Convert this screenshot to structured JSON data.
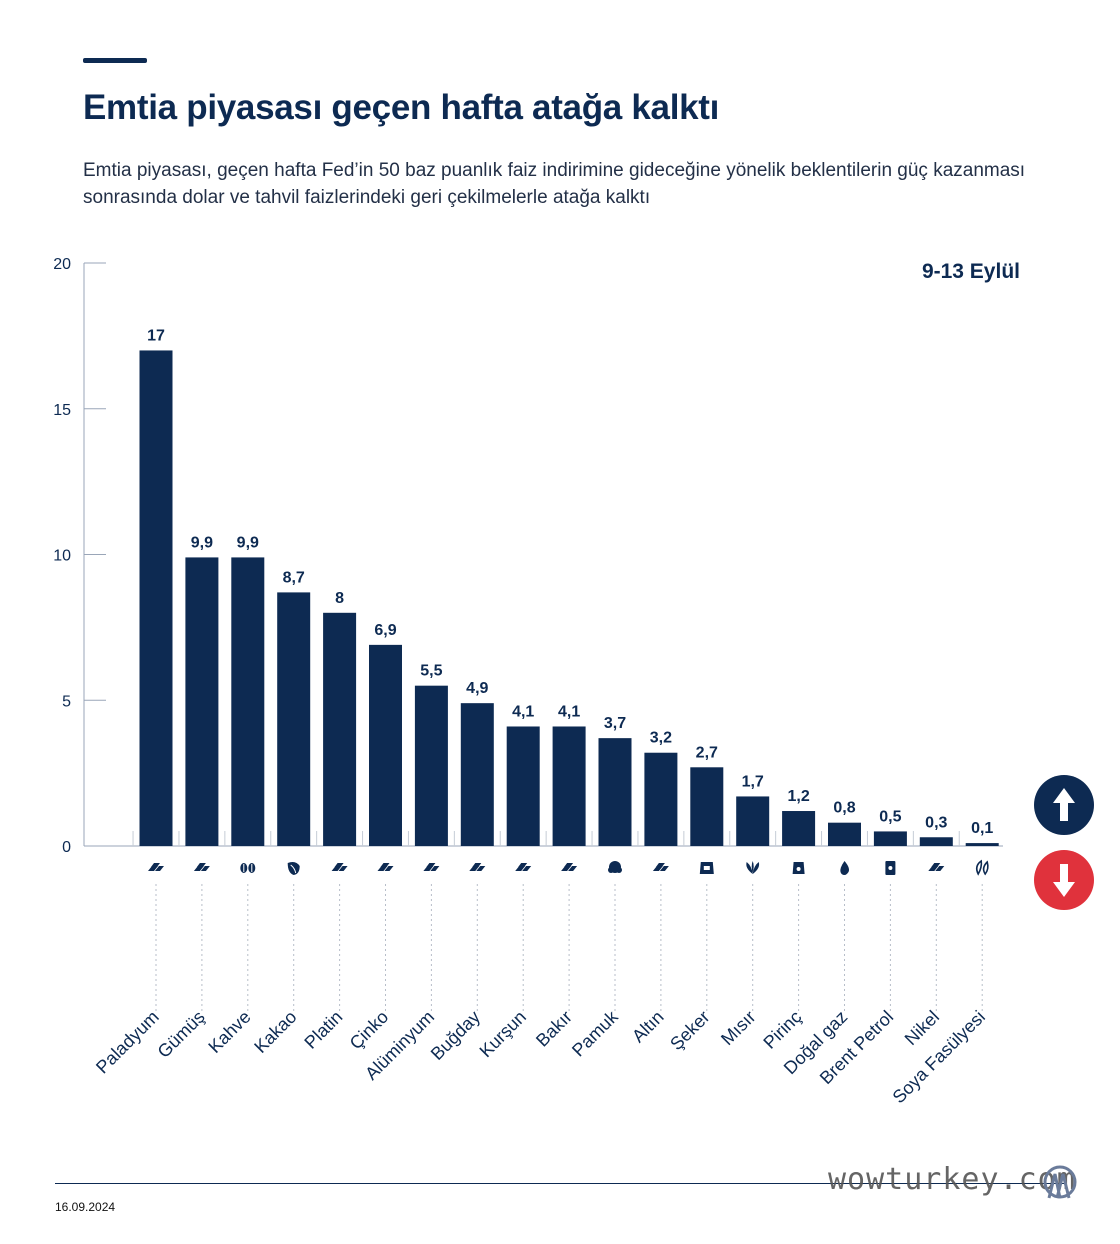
{
  "header": {
    "title": "Emtia piyasası geçen hafta atağa kalktı",
    "subtitle": "Emtia piyasası, geçen hafta Fed’in 50 baz puanlık faiz indirimine gideceğine yönelik beklentilerin güç kazanması sonrasında dolar ve tahvil faizlerindeki geri çekilmelerle atağa kalktı"
  },
  "chart_data": {
    "type": "bar",
    "period_label": "9-13 Eylül",
    "categories": [
      "Paladyum",
      "Gümüş",
      "Kahve",
      "Kakao",
      "Platin",
      "Çinko",
      "Alüminyum",
      "Buğday",
      "Kurşun",
      "Bakır",
      "Pamuk",
      "Altın",
      "Şeker",
      "Mısır",
      "Pirinç",
      "Doğal gaz",
      "Brent Petrol",
      "Nikel",
      "Soya Fasülyesi"
    ],
    "values": [
      17,
      9.9,
      9.9,
      8.7,
      8,
      6.9,
      5.5,
      4.9,
      4.1,
      4.1,
      3.7,
      3.2,
      2.7,
      1.7,
      1.2,
      0.8,
      0.5,
      0.3,
      0.1
    ],
    "value_labels": [
      "17",
      "9,9",
      "9,9",
      "8,7",
      "8",
      "6,9",
      "5,5",
      "4,9",
      "4,1",
      "4,1",
      "3,7",
      "3,2",
      "2,7",
      "1,7",
      "1,2",
      "0,8",
      "0,5",
      "0,3",
      "0,1"
    ],
    "icons": [
      "metal-bars-icon",
      "metal-bars-icon",
      "coffee-beans-icon",
      "cocoa-pod-icon",
      "metal-bars-icon",
      "metal-bars-icon",
      "metal-bars-icon",
      "metal-bars-icon",
      "metal-bars-icon",
      "metal-bars-icon",
      "cotton-icon",
      "metal-bars-icon",
      "sugar-sack-icon",
      "corn-leaf-icon",
      "rice-sack-icon",
      "gas-flame-icon",
      "oil-barrel-icon",
      "metal-bars-icon",
      "soybean-icon"
    ],
    "yticks": [
      "0",
      "5",
      "10",
      "15",
      "20"
    ],
    "ylim": [
      0,
      20
    ],
    "grid": false,
    "bar_color": "#0d2a52",
    "legend": {
      "up_color": "#0d2a52",
      "down_color": "#e0323c",
      "up_icon": "arrow-up-icon",
      "down_icon": "arrow-down-icon"
    }
  },
  "footer": {
    "date": "16.09.2024",
    "watermark": "wowturkey.com",
    "logo_icon": "aa-logo-icon"
  }
}
